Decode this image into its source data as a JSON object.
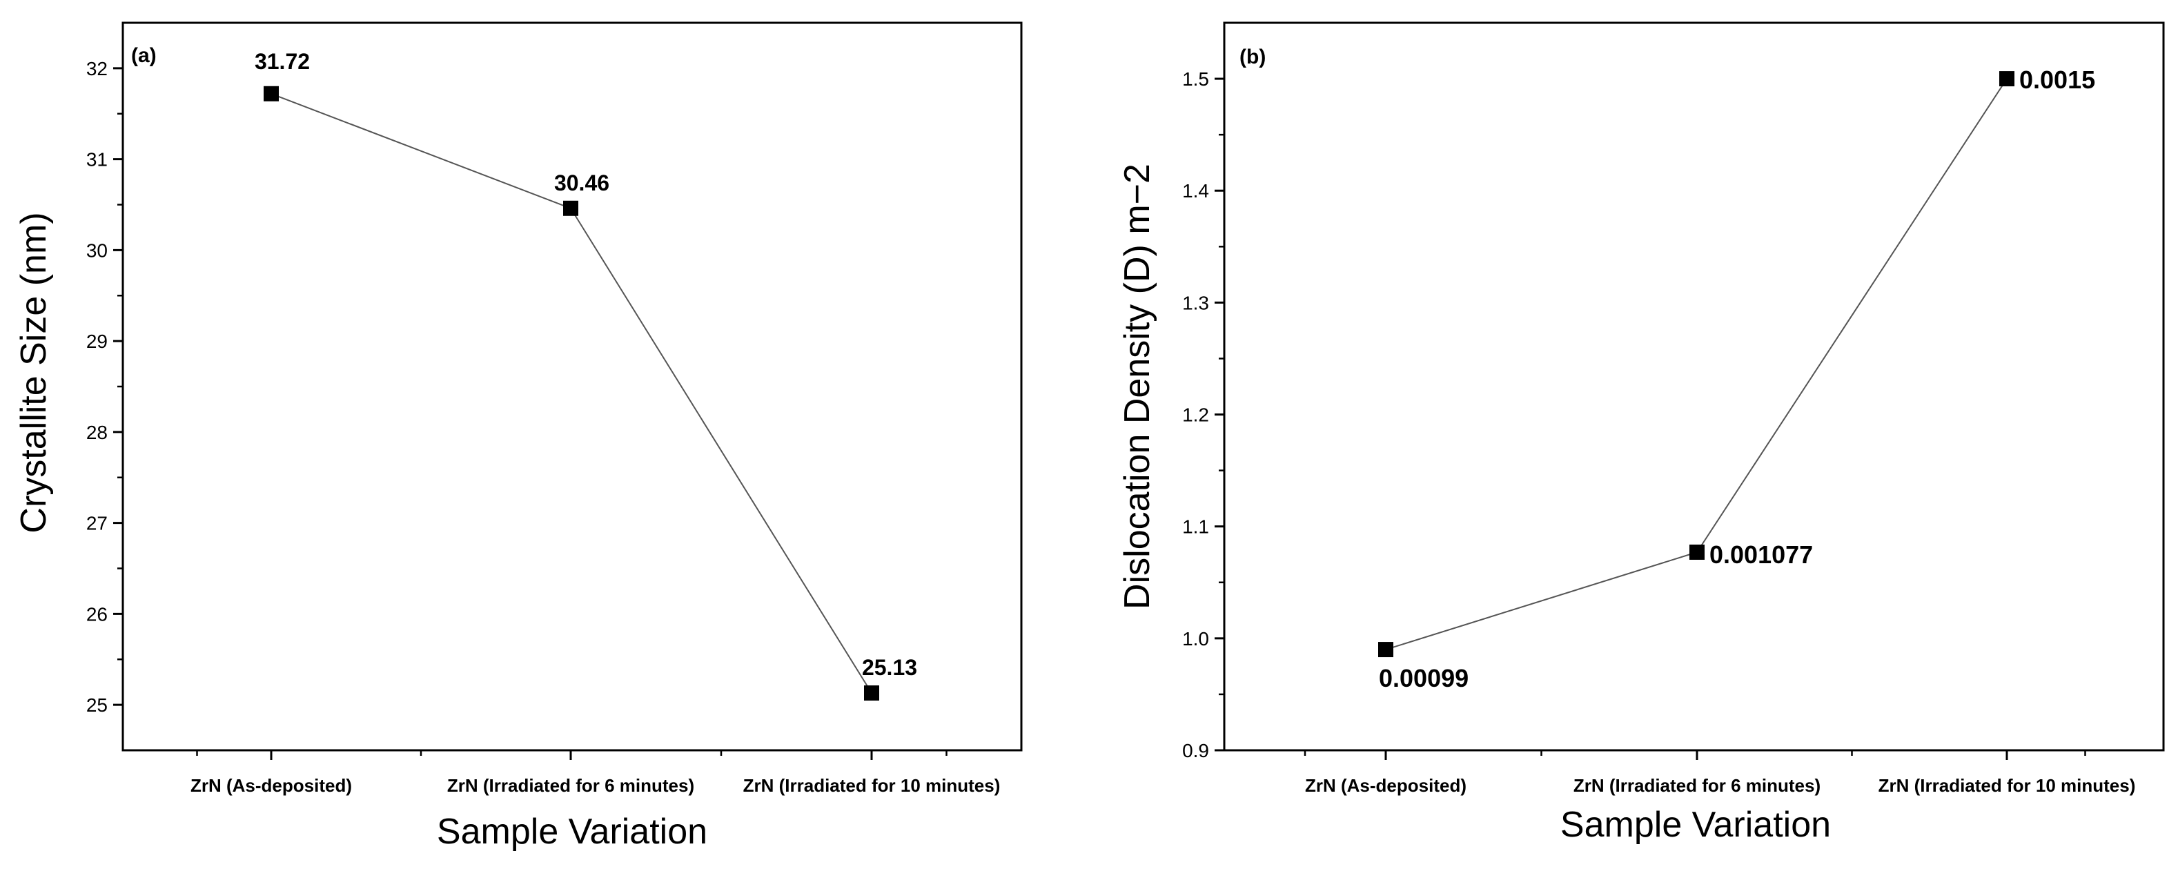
{
  "chart_data": [
    {
      "type": "line",
      "panel_tag": "(a)",
      "categories": [
        "ZrN (As-deposited)",
        "ZrN (Irradiated for 6 minutes)",
        "ZrN (Irradiated for 10 minutes)"
      ],
      "series": [
        {
          "values": [
            31.72,
            30.46,
            25.13
          ]
        }
      ],
      "data_labels": [
        "31.72",
        "30.46",
        "25.13"
      ],
      "xlabel": "Sample Variation",
      "ylabel": "Crystallite Size (nm)",
      "ylim": [
        24.5,
        32.5
      ],
      "yticks": [
        25,
        26,
        27,
        28,
        29,
        30,
        31,
        32
      ],
      "grid": false,
      "marker": "square",
      "colors": {
        "line": "#555555",
        "marker": "#000000"
      }
    },
    {
      "type": "line",
      "panel_tag": "(b)",
      "categories": [
        "ZrN (As-deposited)",
        "ZrN (Irradiated for 6 minutes)",
        "ZrN (Irradiated for 10 minutes)"
      ],
      "series": [
        {
          "values": [
            0.99,
            1.077,
            1.5
          ]
        }
      ],
      "data_labels": [
        "0.00099",
        "0.001077",
        "0.0015"
      ],
      "xlabel": "Sample Variation",
      "ylabel": "Dislocation Density (D) m−2",
      "ylim": [
        0.9,
        1.55
      ],
      "yticks": [
        "0.9",
        "1.0",
        "1.1",
        "1.2",
        "1.3",
        "1.4",
        "1.5"
      ],
      "grid": false,
      "marker": "square",
      "colors": {
        "line": "#555555",
        "marker": "#000000"
      }
    }
  ]
}
